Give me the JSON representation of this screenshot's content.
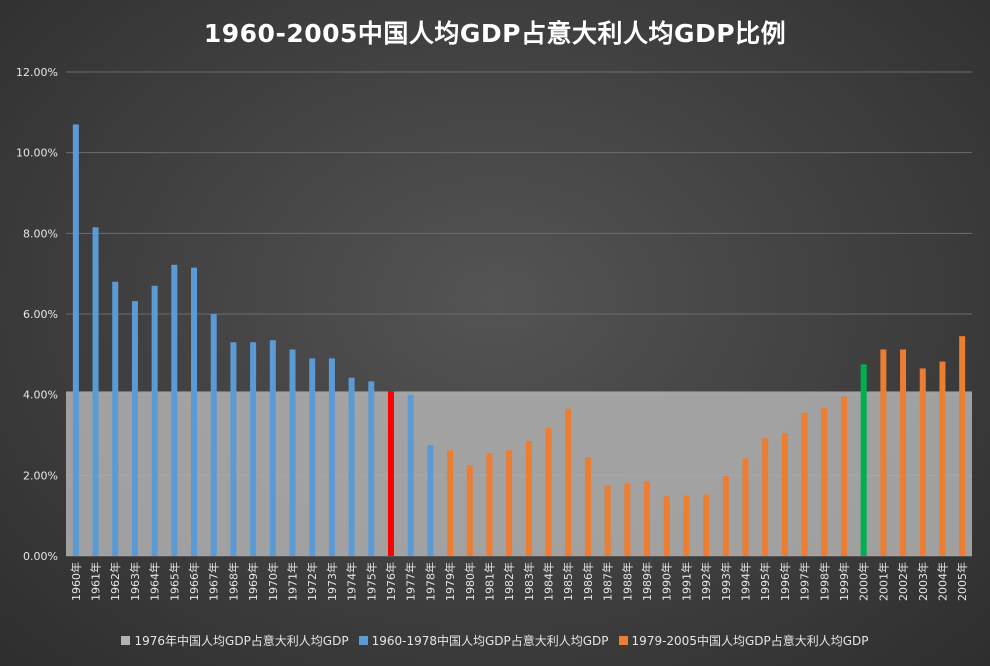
{
  "chart_data": {
    "type": "bar",
    "title": "1960-2005中国人均GDP占意大利人均GDP比例",
    "y_tick_labels": [
      "0.00%",
      "2.00%",
      "4.00%",
      "6.00%",
      "8.00%",
      "10.00%",
      "12.00%"
    ],
    "ylim": [
      0,
      12
    ],
    "grid": true,
    "legend_position": "bottom",
    "categories": [
      "1960年",
      "1961年",
      "1962年",
      "1963年",
      "1964年",
      "1965年",
      "1966年",
      "1967年",
      "1968年",
      "1969年",
      "1970年",
      "1971年",
      "1972年",
      "1973年",
      "1974年",
      "1975年",
      "1976年",
      "1977年",
      "1978年",
      "1979年",
      "1980年",
      "1981年",
      "1982年",
      "1983年",
      "1984年",
      "1985年",
      "1986年",
      "1987年",
      "1988年",
      "1989年",
      "1990年",
      "1991年",
      "1992年",
      "1993年",
      "1994年",
      "1995年",
      "1996年",
      "1997年",
      "1998年",
      "1999年",
      "2000年",
      "2001年",
      "2002年",
      "2003年",
      "2004年",
      "2005年"
    ],
    "values": [
      10.7,
      8.15,
      6.8,
      6.32,
      6.7,
      7.22,
      7.15,
      6.0,
      5.3,
      5.3,
      5.35,
      5.12,
      4.9,
      4.9,
      4.42,
      4.33,
      4.08,
      4.0,
      2.75,
      2.62,
      2.25,
      2.55,
      2.62,
      2.85,
      3.18,
      3.65,
      2.45,
      1.75,
      1.8,
      1.85,
      1.48,
      1.5,
      1.52,
      1.98,
      2.42,
      2.92,
      3.05,
      3.55,
      3.68,
      3.95,
      4.75,
      5.12,
      5.12,
      4.65,
      4.82,
      5.45
    ],
    "bar_colors": [
      "#5b9bd5",
      "#5b9bd5",
      "#5b9bd5",
      "#5b9bd5",
      "#5b9bd5",
      "#5b9bd5",
      "#5b9bd5",
      "#5b9bd5",
      "#5b9bd5",
      "#5b9bd5",
      "#5b9bd5",
      "#5b9bd5",
      "#5b9bd5",
      "#5b9bd5",
      "#5b9bd5",
      "#5b9bd5",
      "#ff0000",
      "#5b9bd5",
      "#5b9bd5",
      "#ed7d31",
      "#ed7d31",
      "#ed7d31",
      "#ed7d31",
      "#ed7d31",
      "#ed7d31",
      "#ed7d31",
      "#ed7d31",
      "#ed7d31",
      "#ed7d31",
      "#ed7d31",
      "#ed7d31",
      "#ed7d31",
      "#ed7d31",
      "#ed7d31",
      "#ed7d31",
      "#ed7d31",
      "#ed7d31",
      "#ed7d31",
      "#ed7d31",
      "#ed7d31",
      "#00b050",
      "#ed7d31",
      "#ed7d31",
      "#ed7d31",
      "#ed7d31",
      "#ed7d31"
    ],
    "reference_band": {
      "value": 4.08,
      "color": "#b3b3b3"
    },
    "legend": [
      {
        "label": "1976年中国人均GDP占意大利人均GDP",
        "color": "#b3b3b3"
      },
      {
        "label": "1960-1978中国人均GDP占意大利人均GDP",
        "color": "#5b9bd5"
      },
      {
        "label": "1979-2005中国人均GDP占意大利人均GDP",
        "color": "#ed7d31"
      }
    ]
  }
}
